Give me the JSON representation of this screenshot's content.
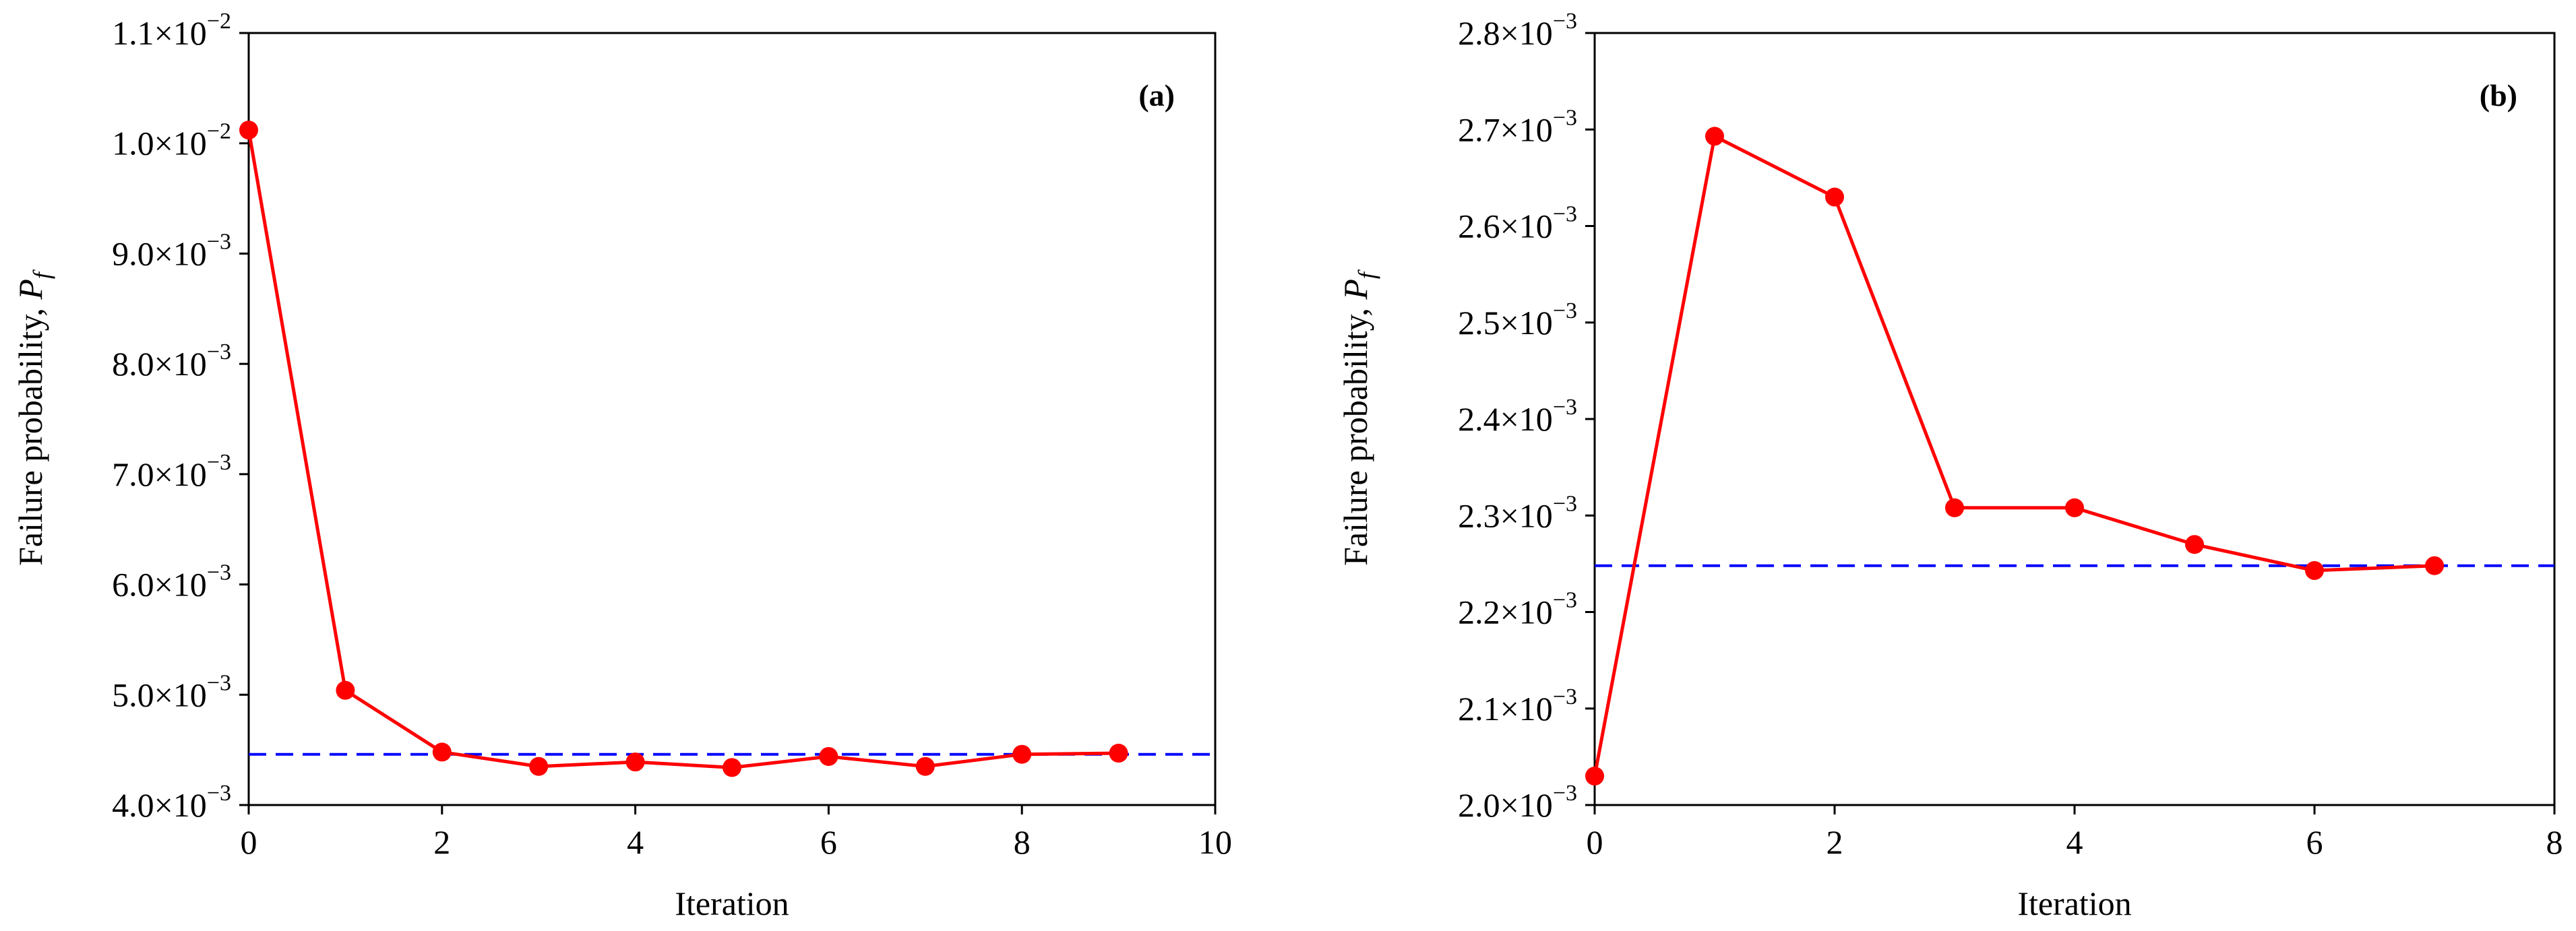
{
  "chart_data": [
    {
      "type": "line",
      "panel_label": "(a)",
      "xlabel": "Iteration",
      "ylabel": "Failure probability, ",
      "ylabel_symbol": "P",
      "ylabel_subscript": "f",
      "xlim": [
        0,
        10
      ],
      "ylim": [
        0.004,
        0.011
      ],
      "x_ticks": [
        0,
        2,
        4,
        6,
        8,
        10
      ],
      "x_tick_labels": [
        "0",
        "2",
        "4",
        "6",
        "8",
        "10"
      ],
      "y_ticks": [
        0.004,
        0.005,
        0.006,
        0.007,
        0.008,
        0.009,
        0.01,
        0.011
      ],
      "y_tick_labels": [
        {
          "mantissa": "4.0×10",
          "exponent": "−3"
        },
        {
          "mantissa": "5.0×10",
          "exponent": "−3"
        },
        {
          "mantissa": "6.0×10",
          "exponent": "−3"
        },
        {
          "mantissa": "7.0×10",
          "exponent": "−3"
        },
        {
          "mantissa": "8.0×10",
          "exponent": "−3"
        },
        {
          "mantissa": "9.0×10",
          "exponent": "−3"
        },
        {
          "mantissa": "1.0×10",
          "exponent": "−2"
        },
        {
          "mantissa": "1.1×10",
          "exponent": "−2"
        }
      ],
      "grid": false,
      "series": [
        {
          "color": "#ff0000",
          "marker": "circle",
          "x": [
            0,
            1,
            2,
            3,
            4,
            5,
            6,
            7,
            8,
            9
          ],
          "y": [
            0.01012,
            0.00504,
            0.00448,
            0.00435,
            0.00439,
            0.00434,
            0.00444,
            0.00435,
            0.00446,
            0.00447
          ]
        }
      ],
      "reference_line": {
        "y": 0.00446,
        "color": "#0000ff",
        "style": "dashed"
      }
    },
    {
      "type": "line",
      "panel_label": "(b)",
      "xlabel": "Iteration",
      "ylabel": "Failure probability, ",
      "ylabel_symbol": "P",
      "ylabel_subscript": "f",
      "xlim": [
        0,
        8
      ],
      "ylim": [
        0.002,
        0.0028
      ],
      "x_ticks": [
        0,
        2,
        4,
        6,
        8
      ],
      "x_tick_labels": [
        "0",
        "2",
        "4",
        "6",
        "8"
      ],
      "y_ticks": [
        0.002,
        0.0021,
        0.0022,
        0.0023,
        0.0024,
        0.0025,
        0.0026,
        0.0027,
        0.0028
      ],
      "y_tick_labels": [
        {
          "mantissa": "2.0×10",
          "exponent": "−3"
        },
        {
          "mantissa": "2.1×10",
          "exponent": "−3"
        },
        {
          "mantissa": "2.2×10",
          "exponent": "−3"
        },
        {
          "mantissa": "2.3×10",
          "exponent": "−3"
        },
        {
          "mantissa": "2.4×10",
          "exponent": "−3"
        },
        {
          "mantissa": "2.5×10",
          "exponent": "−3"
        },
        {
          "mantissa": "2.6×10",
          "exponent": "−3"
        },
        {
          "mantissa": "2.7×10",
          "exponent": "−3"
        },
        {
          "mantissa": "2.8×10",
          "exponent": "−3"
        }
      ],
      "grid": false,
      "series": [
        {
          "color": "#ff0000",
          "marker": "circle",
          "x": [
            0,
            1,
            2,
            3,
            4,
            5,
            6,
            7
          ],
          "y": [
            0.00203,
            0.002693,
            0.00263,
            0.002308,
            0.002308,
            0.00227,
            0.002243,
            0.002248
          ]
        }
      ],
      "reference_line": {
        "y": 0.002248,
        "color": "#0000ff",
        "style": "dashed"
      }
    }
  ]
}
